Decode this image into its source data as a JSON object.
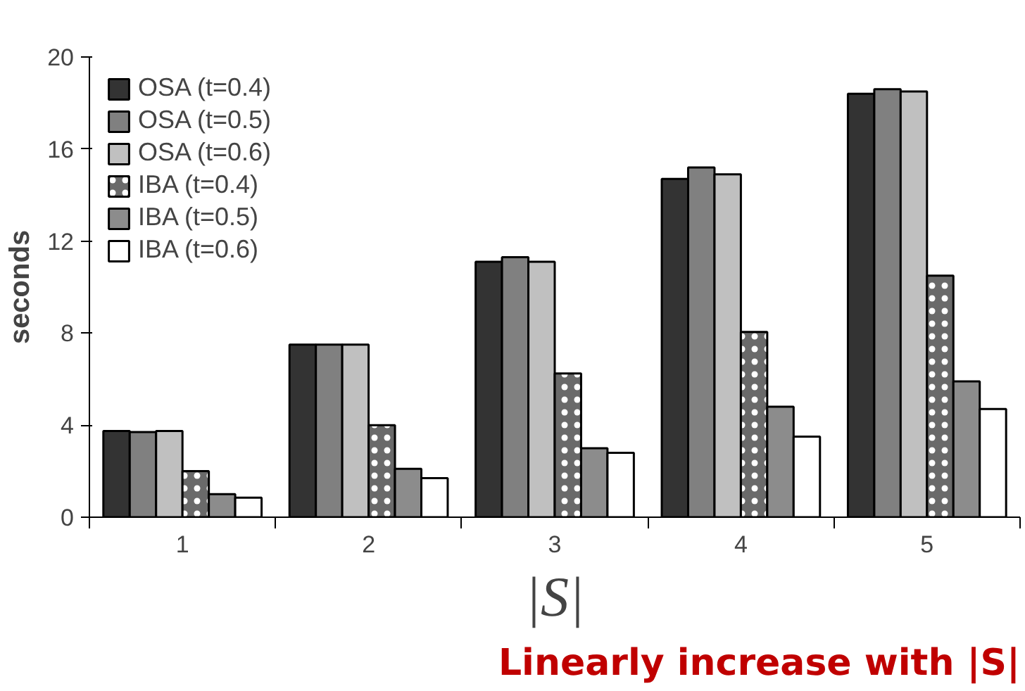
{
  "chart_data": {
    "type": "bar",
    "categories": [
      "1",
      "2",
      "3",
      "4",
      "5"
    ],
    "series": [
      {
        "name": "OSA (t=0.4)",
        "color": "#333333",
        "values": [
          3.75,
          7.5,
          11.1,
          14.7,
          18.4
        ]
      },
      {
        "name": "OSA (t=0.5)",
        "color": "#808080",
        "values": [
          3.7,
          7.5,
          11.3,
          15.2,
          18.6
        ]
      },
      {
        "name": "OSA (t=0.6)",
        "color": "#c0c0c0",
        "values": [
          3.75,
          7.5,
          11.1,
          14.9,
          18.5
        ]
      },
      {
        "name": "IBA (t=0.4)",
        "color": "#6a6a6a",
        "values": [
          2.0,
          4.0,
          6.25,
          8.05,
          10.5
        ]
      },
      {
        "name": "IBA (t=0.5)",
        "color": "#8c8c8c",
        "values": [
          1.0,
          2.1,
          3.0,
          4.8,
          5.9
        ]
      },
      {
        "name": "IBA (t=0.6)",
        "color": "#ffffff",
        "values": [
          0.85,
          1.7,
          2.8,
          3.5,
          4.7
        ]
      }
    ],
    "ylabel": "seconds",
    "xlabel": "|S|",
    "ylim": [
      0,
      20
    ],
    "yticks": [
      0,
      4,
      8,
      12,
      16,
      20
    ],
    "grid": false,
    "legend": "top left",
    "annotations": [
      "Linearly increase with |S|"
    ]
  }
}
